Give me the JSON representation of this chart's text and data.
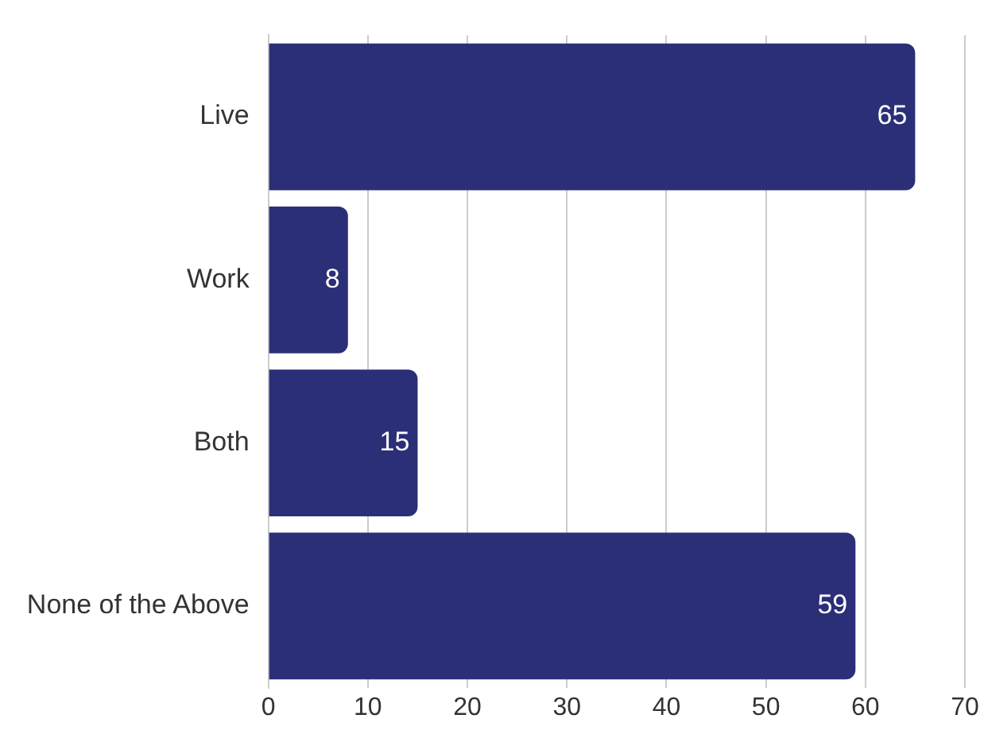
{
  "chart_data": {
    "type": "bar",
    "orientation": "horizontal",
    "categories": [
      "Live",
      "Work",
      "Both",
      "None of the Above"
    ],
    "values": [
      65,
      8,
      15,
      59
    ],
    "color": "#2b2f78",
    "data_labels": true,
    "xlim": [
      0,
      70
    ],
    "xticks": [
      0,
      10,
      20,
      30,
      40,
      50,
      60,
      70
    ],
    "grid": "x",
    "legend": false
  }
}
